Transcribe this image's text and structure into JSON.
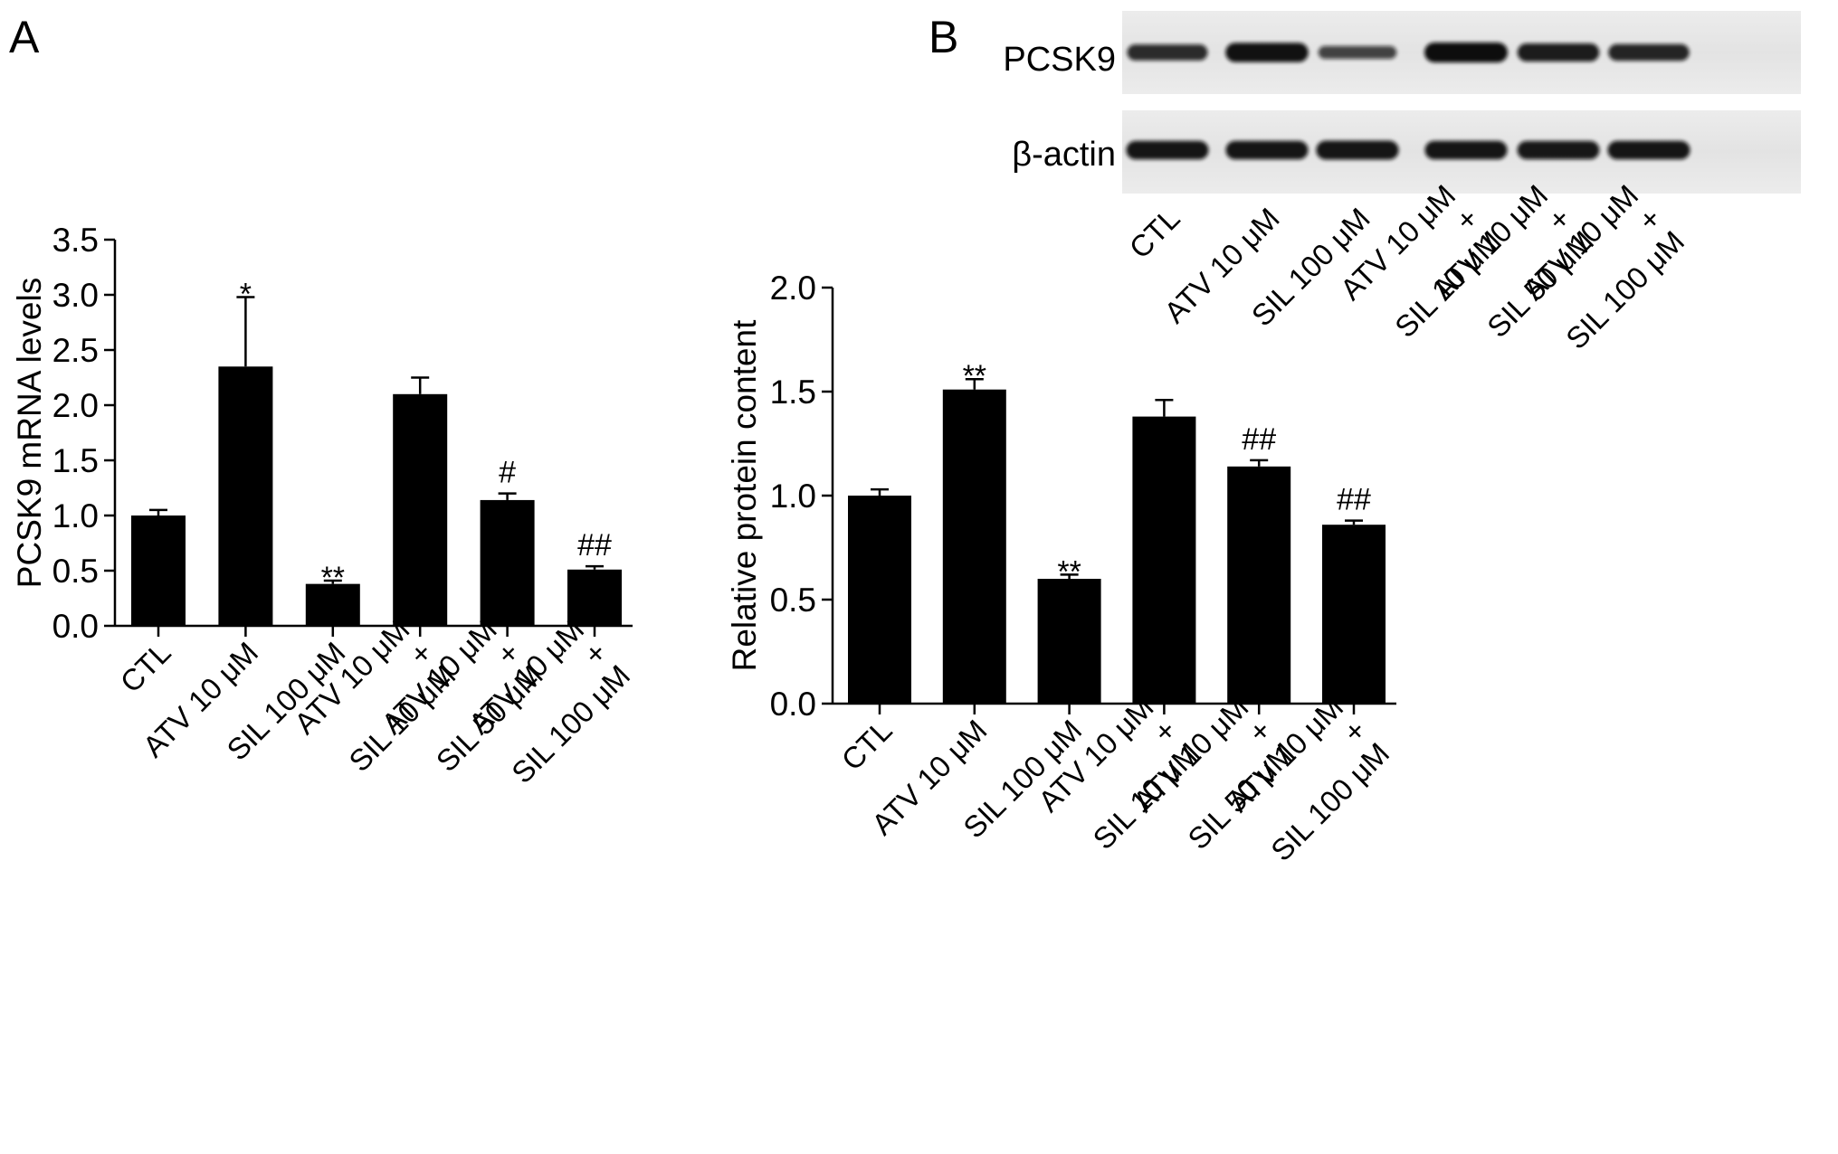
{
  "panels": {
    "A": {
      "label": "A"
    },
    "B": {
      "label": "B"
    }
  },
  "blot": {
    "rows": [
      {
        "name": "PCSK9",
        "band_intensity": [
          0.7,
          0.95,
          0.45,
          1.0,
          0.85,
          0.75
        ]
      },
      {
        "name": "β-actin",
        "band_intensity": [
          0.9,
          0.9,
          0.92,
          0.9,
          0.88,
          0.9
        ]
      }
    ],
    "lanes": [
      "CTL",
      "ATV 10 μM",
      "SIL 100 μM",
      "ATV 10 μM|+|SIL 10 μM",
      "ATV 10 μM|+|SIL 50 μM",
      "ATV 10 μM|+|SIL 100 μM"
    ]
  },
  "chart_data": [
    {
      "type": "bar",
      "panel": "A",
      "title": "",
      "xlabel": "",
      "ylabel": "PCSK9 mRNA levels",
      "ylim": [
        0,
        3.5
      ],
      "yticks": [
        0.0,
        0.5,
        1.0,
        1.5,
        2.0,
        2.5,
        3.0,
        3.5
      ],
      "ytick_labels": [
        "0.0",
        "0.5",
        "1.0",
        "1.5",
        "2.0",
        "2.5",
        "3.0",
        "3.5"
      ],
      "categories": [
        "CTL",
        "ATV 10 μM",
        "SIL 100 μM",
        "ATV 10 μM|+|SIL 10 μM",
        "ATV 10 μM|+|SIL 50 μM",
        "ATV 10 μM|+|SIL 100 μM"
      ],
      "values": [
        1.0,
        2.35,
        0.38,
        2.1,
        1.14,
        0.51
      ],
      "errors": [
        0.05,
        0.63,
        0.03,
        0.15,
        0.06,
        0.03
      ],
      "annotations": [
        "",
        "*",
        "**",
        "",
        "#",
        "##"
      ],
      "bar_color": "#000000",
      "grid": false
    },
    {
      "type": "bar",
      "panel": "B",
      "title": "",
      "xlabel": "",
      "ylabel": "Relative protein content",
      "ylim": [
        0,
        2.0
      ],
      "yticks": [
        0.0,
        0.5,
        1.0,
        1.5,
        2.0
      ],
      "ytick_labels": [
        "0.0",
        "0.5",
        "1.0",
        "1.5",
        "2.0"
      ],
      "categories": [
        "CTL",
        "ATV 10 μM",
        "SIL 100 μM",
        "ATV 10 μM|+|SIL 10 μM",
        "ATV 10 μM|+|SIL 50 μM",
        "ATV 10 μM|+|SIL 100 μM"
      ],
      "values": [
        1.0,
        1.51,
        0.6,
        1.38,
        1.14,
        0.86
      ],
      "errors": [
        0.03,
        0.05,
        0.02,
        0.08,
        0.03,
        0.02
      ],
      "annotations": [
        "",
        "**",
        "**",
        "",
        "##",
        "##"
      ],
      "bar_color": "#000000",
      "grid": false
    }
  ]
}
